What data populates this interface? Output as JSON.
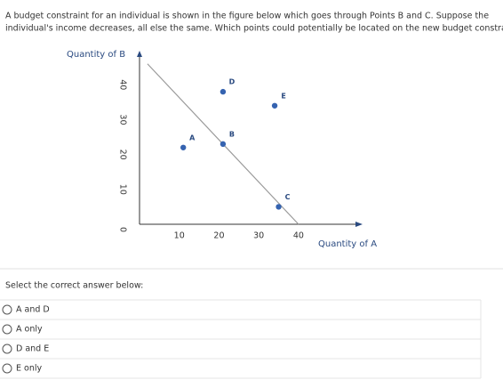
{
  "question": [
    "A budget constraint for an individual is shown in the figure below which goes through Points B and C. Suppose the",
    "individual's income decreases, all else the same. Which points could potentially be located on the new budget constraint?"
  ],
  "chart_data": {
    "type": "scatter",
    "ylabel": "Quantity of B",
    "xlabel": "Quantity of A",
    "xlim": [
      0,
      55
    ],
    "ylim": [
      0,
      49
    ],
    "xticks": [
      10,
      20,
      30,
      40
    ],
    "yticks": [
      0,
      10,
      20,
      30,
      40
    ],
    "points": {
      "labels": [
        "A",
        "B",
        "C",
        "D",
        "E"
      ],
      "x": [
        11,
        21,
        35,
        21,
        34
      ],
      "y": [
        22,
        23,
        5,
        38,
        34
      ],
      "color": "#3563b0"
    },
    "line": {
      "x": [
        2,
        40
      ],
      "y": [
        46,
        0
      ],
      "color": "#9a9a9a"
    }
  },
  "prompt": "Select the correct answer below:",
  "options": [
    "A and D",
    "A only",
    "D and E",
    "E only"
  ]
}
